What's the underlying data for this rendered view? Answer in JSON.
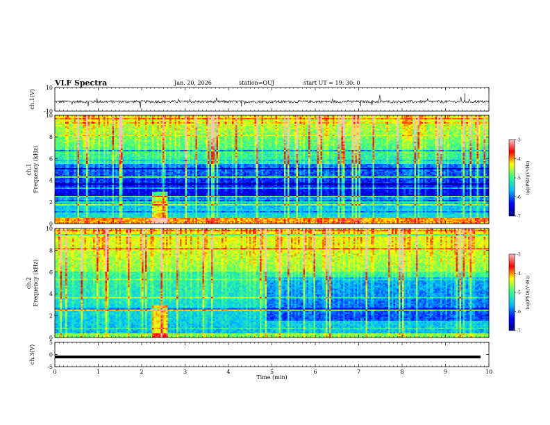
{
  "header": {
    "title": "VLF Spectra",
    "date": "Jan. 20, 2026",
    "station": "station=OUJ",
    "start": "start  UT =   19: 30: 0"
  },
  "colors": {
    "colormap": [
      "#000080",
      "#0000ff",
      "#00c0ff",
      "#40ff80",
      "#ffff00",
      "#ff0000",
      "#ffc0c0"
    ]
  },
  "chart_data": [
    {
      "type": "line",
      "panel": "ch1-waveform",
      "ylabel": "ch.1(V)",
      "ylim": [
        -10,
        10
      ],
      "yticks": [
        10,
        -10
      ],
      "xlim": [
        0,
        10
      ],
      "series": [
        {
          "values_summary": "noisy trace near -2 V with sparse spikes"
        }
      ]
    },
    {
      "type": "heatmap",
      "panel": "ch1-spectrogram",
      "ylabel": "ch.1\nFrequency (kHz)",
      "ylim": [
        0,
        10
      ],
      "yticks": [
        0,
        2,
        4,
        6,
        8,
        10
      ],
      "xlim": [
        0,
        10
      ],
      "colorbar": {
        "label": "log(PSD)(V²/Hz)",
        "range": [
          -7,
          -3
        ],
        "ticks": [
          -3,
          -4,
          -5,
          -6,
          -7
        ]
      }
    },
    {
      "type": "heatmap",
      "panel": "ch2-spectrogram",
      "ylabel": "ch.2\nFrequency (kHz)",
      "ylim": [
        0,
        10
      ],
      "yticks": [
        0,
        2,
        4,
        6,
        8,
        10
      ],
      "xlim": [
        0,
        10
      ],
      "colorbar": {
        "label": "log(PSD)(V²/Hz)",
        "range": [
          -7,
          -3
        ],
        "ticks": [
          -3,
          -4,
          -5,
          -6,
          -7
        ]
      }
    },
    {
      "type": "line",
      "panel": "ch3-waveform",
      "ylabel": "ch.3(V)",
      "ylim": [
        -5,
        5
      ],
      "yticks": [
        5,
        0,
        -5
      ],
      "xlim": [
        0,
        10
      ],
      "series": [
        {
          "values_summary": "flat thick line at about -1 V"
        }
      ]
    }
  ],
  "xaxis": {
    "label": "Time (min)",
    "ticks": [
      0,
      1,
      2,
      3,
      4,
      5,
      6,
      7,
      8,
      9,
      10
    ]
  }
}
